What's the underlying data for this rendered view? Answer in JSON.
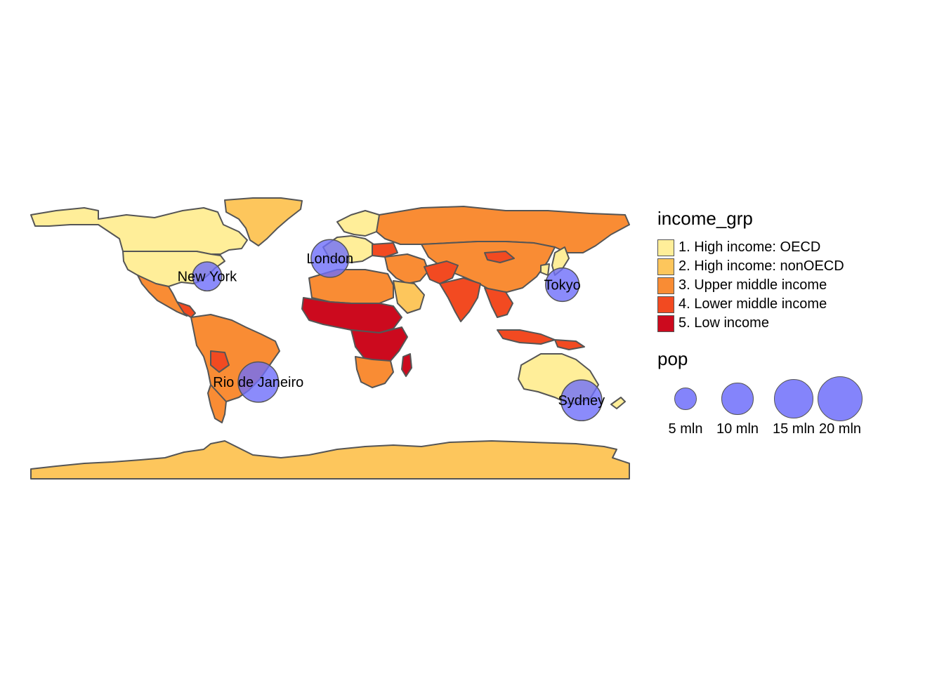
{
  "colors": {
    "income_grp": [
      "#FFEE99",
      "#FDC65C",
      "#F98C34",
      "#F24A21",
      "#CC0A1E"
    ],
    "city_fill": "#6E6EFA",
    "border": "#555555",
    "background": "#ffffff"
  },
  "legend_income": {
    "title": "income_grp",
    "items": [
      "1. High income: OECD",
      "2. High income: nonOECD",
      "3. Upper middle income",
      "4. Lower middle income",
      "5. Low income"
    ]
  },
  "legend_pop": {
    "title": "pop",
    "items": [
      {
        "label": "5 mln",
        "value": 5
      },
      {
        "label": "10 mln",
        "value": 10
      },
      {
        "label": "15 mln",
        "value": 15
      },
      {
        "label": "20 mln",
        "value": 20
      }
    ]
  },
  "cities": [
    {
      "name": "New York",
      "lon": -74.0,
      "lat": 40.7,
      "pop_mln": 8.4
    },
    {
      "name": "London",
      "lon": -0.1,
      "lat": 51.5,
      "pop_mln": 14.1
    },
    {
      "name": "Tokyo",
      "lon": 139.7,
      "lat": 35.7,
      "pop_mln": 11.1
    },
    {
      "name": "Rio de Janeiro",
      "lon": -43.2,
      "lat": -22.9,
      "pop_mln": 16.1
    },
    {
      "name": "Sydney",
      "lon": 151.2,
      "lat": -33.9,
      "pop_mln": 16.5
    }
  ]
}
